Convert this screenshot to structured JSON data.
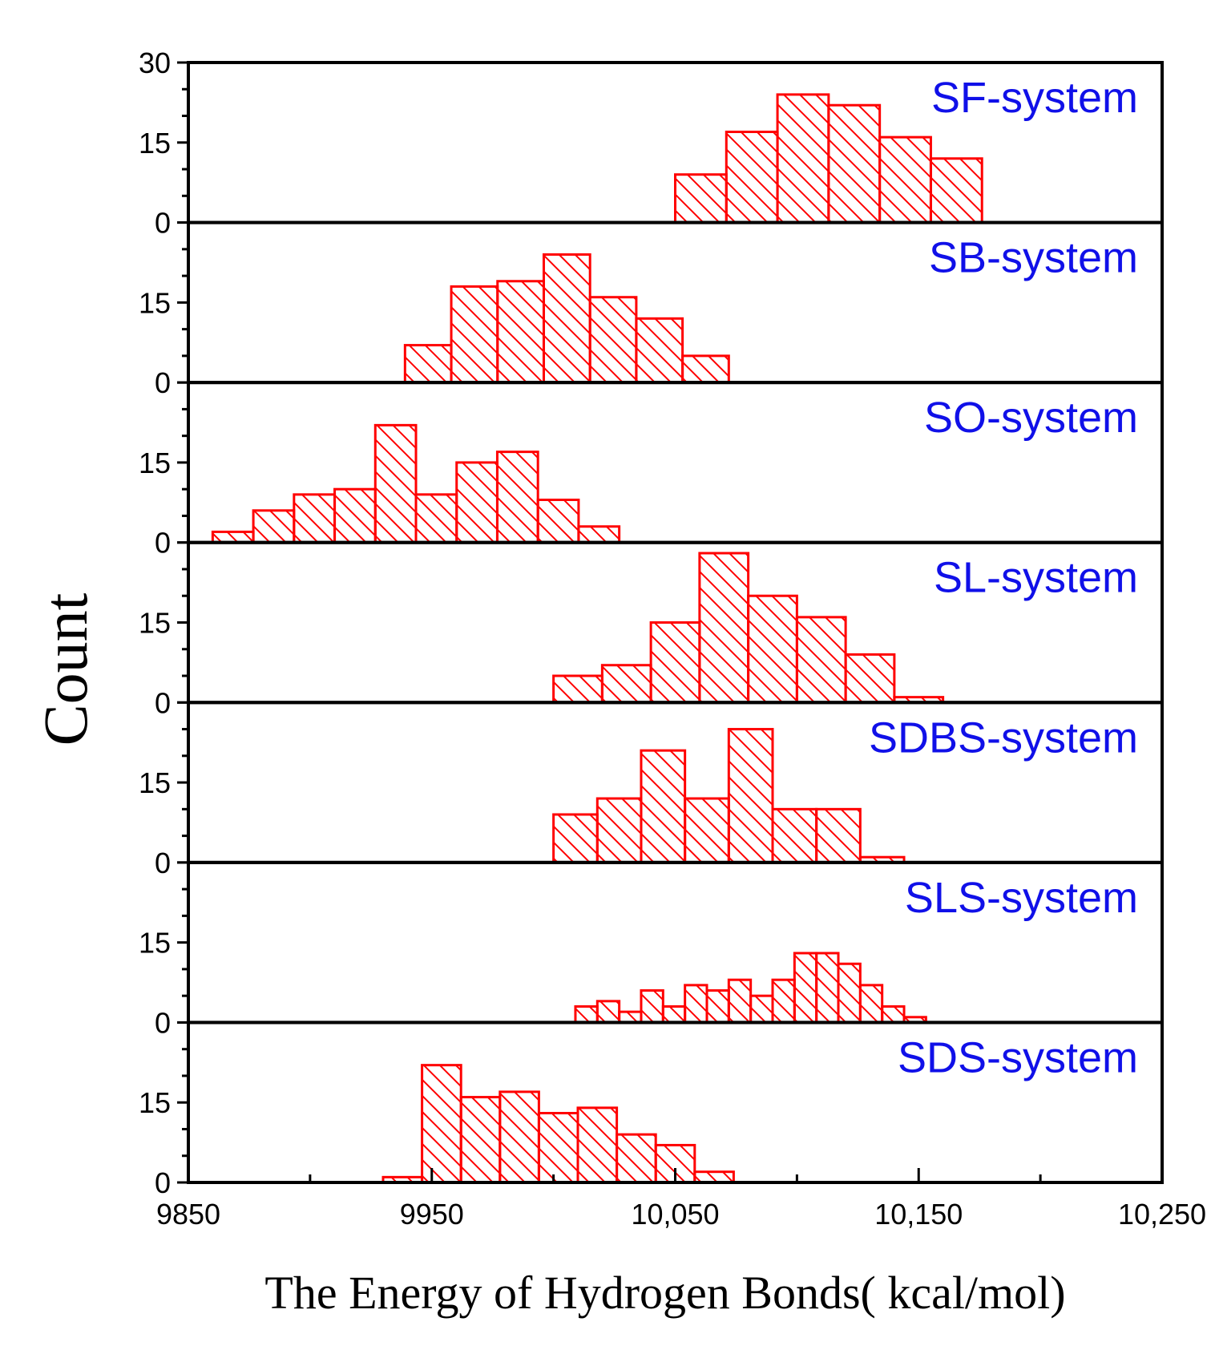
{
  "chart_data": {
    "type": "bar",
    "subtype": "stacked-panel histogram",
    "xlabel": "The Energy of Hydrogen Bonds(  kcal/mol)",
    "ylabel": "Count",
    "xlim": [
      9850,
      10250
    ],
    "xticks": [
      {
        "value": 9850,
        "label": "9850"
      },
      {
        "value": 9950,
        "label": "9950"
      },
      {
        "value": 10050,
        "label": "10,050"
      },
      {
        "value": 10150,
        "label": "10,150"
      },
      {
        "value": 10250,
        "label": "10,250"
      }
    ],
    "ylim": [
      0,
      30
    ],
    "top_panel_label": "30",
    "ytick_labels": [
      "15",
      "0"
    ],
    "bar_color": "#ff0000",
    "label_color": "#1010e8",
    "panels": [
      {
        "name": "SF-system",
        "bin_width": 21,
        "bins": [
          [
            10050,
            9
          ],
          [
            10071,
            17
          ],
          [
            10092,
            24
          ],
          [
            10113,
            22
          ],
          [
            10134,
            16
          ],
          [
            10155,
            12
          ]
        ]
      },
      {
        "name": "SB-system",
        "bin_width": 19,
        "bins": [
          [
            9939,
            7
          ],
          [
            9958,
            18
          ],
          [
            9977,
            19
          ],
          [
            9996,
            24
          ],
          [
            10015,
            16
          ],
          [
            10034,
            12
          ],
          [
            10053,
            5
          ]
        ]
      },
      {
        "name": "SO-system",
        "bin_width": 16.7,
        "bins": [
          [
            9860,
            2
          ],
          [
            9876.7,
            6
          ],
          [
            9893.4,
            9
          ],
          [
            9910.1,
            10
          ],
          [
            9926.8,
            22
          ],
          [
            9943.5,
            9
          ],
          [
            9960.2,
            15
          ],
          [
            9976.9,
            17
          ],
          [
            9993.6,
            8
          ],
          [
            10010.3,
            3
          ]
        ]
      },
      {
        "name": "SL-system",
        "bin_width": 20,
        "bins": [
          [
            10000,
            5
          ],
          [
            10020,
            7
          ],
          [
            10040,
            15
          ],
          [
            10060,
            28
          ],
          [
            10080,
            20
          ],
          [
            10100,
            16
          ],
          [
            10120,
            9
          ],
          [
            10140,
            1
          ]
        ]
      },
      {
        "name": "SDBS-system",
        "bin_width": 18,
        "bins": [
          [
            10000,
            9
          ],
          [
            10018,
            12
          ],
          [
            10036,
            21
          ],
          [
            10054,
            12
          ],
          [
            10072,
            25
          ],
          [
            10090,
            10
          ],
          [
            10108,
            10
          ],
          [
            10126,
            1
          ]
        ]
      },
      {
        "name": "SLS-system",
        "bin_width": 9,
        "bins": [
          [
            10009,
            3
          ],
          [
            10018,
            4
          ],
          [
            10027,
            2
          ],
          [
            10036,
            6
          ],
          [
            10045,
            3
          ],
          [
            10054,
            7
          ],
          [
            10063,
            6
          ],
          [
            10072,
            8
          ],
          [
            10081,
            5
          ],
          [
            10090,
            8
          ],
          [
            10099,
            13
          ],
          [
            10108,
            13
          ],
          [
            10117,
            11
          ],
          [
            10126,
            7
          ],
          [
            10135,
            3
          ],
          [
            10144,
            1
          ]
        ]
      },
      {
        "name": "SDS-system",
        "bin_width": 16,
        "bins": [
          [
            9930,
            1
          ],
          [
            9946,
            22
          ],
          [
            9962,
            16
          ],
          [
            9978,
            17
          ],
          [
            9994,
            13
          ],
          [
            10010,
            14
          ],
          [
            10026,
            9
          ],
          [
            10042,
            7
          ],
          [
            10058,
            2
          ]
        ]
      }
    ]
  }
}
